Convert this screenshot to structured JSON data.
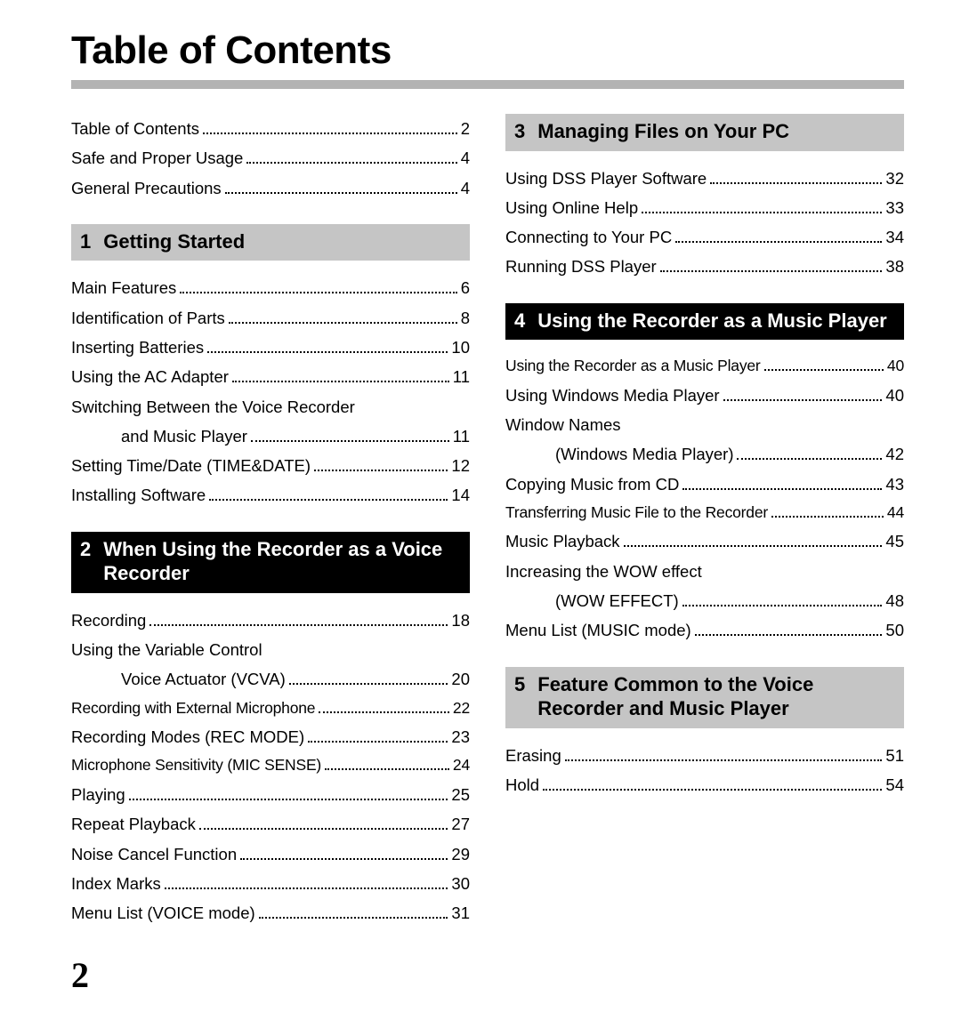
{
  "title": "Table of Contents",
  "page_number": "2",
  "colors": {
    "rule": "#b3b3b3",
    "head_grey_bg": "#c5c5c5",
    "head_black_bg": "#000000",
    "text": "#000000",
    "text_inverse": "#ffffff"
  },
  "left": {
    "front": [
      {
        "label": "Table of Contents",
        "page": "2"
      },
      {
        "label": "Safe and Proper Usage",
        "page": "4"
      },
      {
        "label": "General Precautions",
        "page": "4"
      }
    ],
    "s1": {
      "num": "1",
      "title": "Getting Started",
      "items": [
        {
          "label": "Main Features",
          "page": "6"
        },
        {
          "label": "Identification of Parts",
          "page": "8"
        },
        {
          "label": "Inserting Batteries",
          "page": "10"
        },
        {
          "label": "Using the AC Adapter",
          "page": "11"
        },
        {
          "label": "Switching Between the Voice Recorder",
          "page": "",
          "nopage": true
        },
        {
          "label": "and Music Player",
          "page": "11",
          "indent": true
        },
        {
          "label": "Setting Time/Date (TIME&DATE)",
          "page": "12"
        },
        {
          "label": "Installing Software",
          "page": "14"
        }
      ]
    },
    "s2": {
      "num": "2",
      "title": "When Using the Recorder  as a Voice Recorder",
      "items": [
        {
          "label": "Recording",
          "page": "18"
        },
        {
          "label": "Using the Variable Control",
          "page": "",
          "nopage": true
        },
        {
          "label": "Voice Actuator (VCVA)",
          "page": "20",
          "indent": true
        },
        {
          "label": "Recording with External Microphone",
          "page": "22",
          "small": true
        },
        {
          "label": "Recording Modes (REC MODE)",
          "page": "23"
        },
        {
          "label": "Microphone Sensitivity (MIC SENSE)",
          "page": "24",
          "small": true
        },
        {
          "label": "Playing",
          "page": "25"
        },
        {
          "label": "Repeat Playback",
          "page": "27"
        },
        {
          "label": "Noise Cancel Function",
          "page": "29"
        },
        {
          "label": "Index Marks",
          "page": "30"
        },
        {
          "label": "Menu List (VOICE mode)",
          "page": "31"
        }
      ]
    }
  },
  "right": {
    "s3": {
      "num": "3",
      "title": "Managing Files on Your PC",
      "items": [
        {
          "label": "Using DSS Player Software",
          "page": "32"
        },
        {
          "label": "Using Online Help",
          "page": "33"
        },
        {
          "label": "Connecting to Your PC",
          "page": "34"
        },
        {
          "label": "Running DSS Player",
          "page": "38"
        }
      ]
    },
    "s4": {
      "num": "4",
      "title": "Using the Recorder as a Music Player",
      "items": [
        {
          "label": "Using the Recorder as a Music Player",
          "page": "40",
          "small": true
        },
        {
          "label": "Using Windows Media Player",
          "page": "40"
        },
        {
          "label": "Window Names",
          "page": "",
          "nopage": true
        },
        {
          "label": "(Windows Media Player)",
          "page": "42",
          "indent": true
        },
        {
          "label": "Copying Music from CD",
          "page": "43"
        },
        {
          "label": "Transferring Music File to the Recorder",
          "page": "44",
          "small": true
        },
        {
          "label": "Music Playback",
          "page": "45"
        },
        {
          "label": "Increasing the WOW effect",
          "page": "",
          "nopage": true
        },
        {
          "label": "(WOW EFFECT)",
          "page": "48",
          "indent": true
        },
        {
          "label": "Menu List (MUSIC mode)",
          "page": "50"
        }
      ]
    },
    "s5": {
      "num": "5",
      "title": "Feature Common to the Voice Recorder and Music Player",
      "items": [
        {
          "label": "Erasing",
          "page": "51"
        },
        {
          "label": "Hold",
          "page": "54"
        }
      ]
    }
  }
}
